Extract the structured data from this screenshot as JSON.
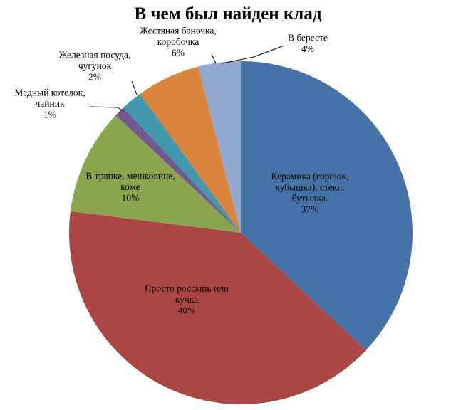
{
  "chart_data": {
    "type": "pie",
    "title": "В чем был найден клад",
    "start_angle_deg": 0,
    "direction": "clockwise",
    "slices": [
      {
        "label_lines": [
          "Керамика (горшок,",
          "кубышка), стекл.",
          "бутылка."
        ],
        "percent_label": "37%",
        "value": 37,
        "color": "#4572A7"
      },
      {
        "label_lines": [
          "Просто россыпь или",
          "кучка"
        ],
        "percent_label": "40%",
        "value": 40,
        "color": "#AA4643"
      },
      {
        "label_lines": [
          "В тряпке, мешковине,",
          "коже"
        ],
        "percent_label": "10%",
        "value": 10,
        "color": "#89A54E"
      },
      {
        "label_lines": [
          "Медный котелок,",
          "чайник"
        ],
        "percent_label": "1%",
        "value": 1,
        "color": "#71588F"
      },
      {
        "label_lines": [
          "Железная посуда,",
          "чугунок"
        ],
        "percent_label": "2%",
        "value": 2,
        "color": "#4198AF"
      },
      {
        "label_lines": [
          "Жестяная баночка,",
          "коробочка"
        ],
        "percent_label": "6%",
        "value": 6,
        "color": "#DB843D"
      },
      {
        "label_lines": [
          "В бересте"
        ],
        "percent_label": "4%",
        "value": 4,
        "color": "#93A9CF"
      }
    ]
  }
}
